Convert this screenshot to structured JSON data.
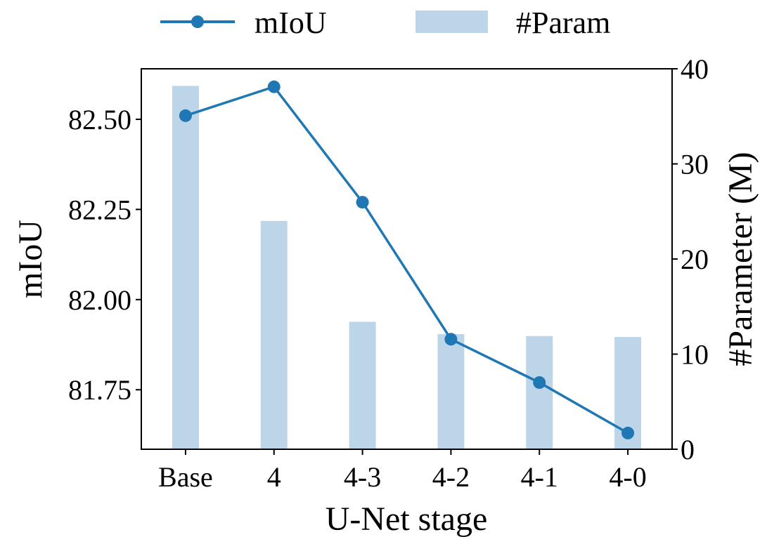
{
  "chart_data": {
    "type": "bar+line",
    "xlabel": "U-Net stage",
    "categories": [
      "Base",
      "4",
      "4-3",
      "4-2",
      "4-1",
      "4-0"
    ],
    "series": [
      {
        "name": "mIoU",
        "type": "line",
        "axis": "left",
        "values": [
          82.51,
          82.59,
          82.27,
          81.89,
          81.77,
          81.63
        ]
      },
      {
        "name": "#Param",
        "type": "bar",
        "axis": "right",
        "values": [
          38.2,
          24.0,
          13.4,
          12.1,
          11.9,
          11.8
        ]
      }
    ],
    "y_left": {
      "label": "mIoU",
      "lim": [
        81.585,
        82.64
      ],
      "ticks": [
        "81.75",
        "82.00",
        "82.25",
        "82.50"
      ]
    },
    "y_right": {
      "label": "#Parameter (M)",
      "lim": [
        0,
        40
      ],
      "ticks": [
        "0",
        "10",
        "20",
        "30",
        "40"
      ]
    },
    "legend_position": "top-center",
    "grid": false,
    "colors": {
      "line": "#1f77b4",
      "bar": "#bcd5e8"
    }
  }
}
